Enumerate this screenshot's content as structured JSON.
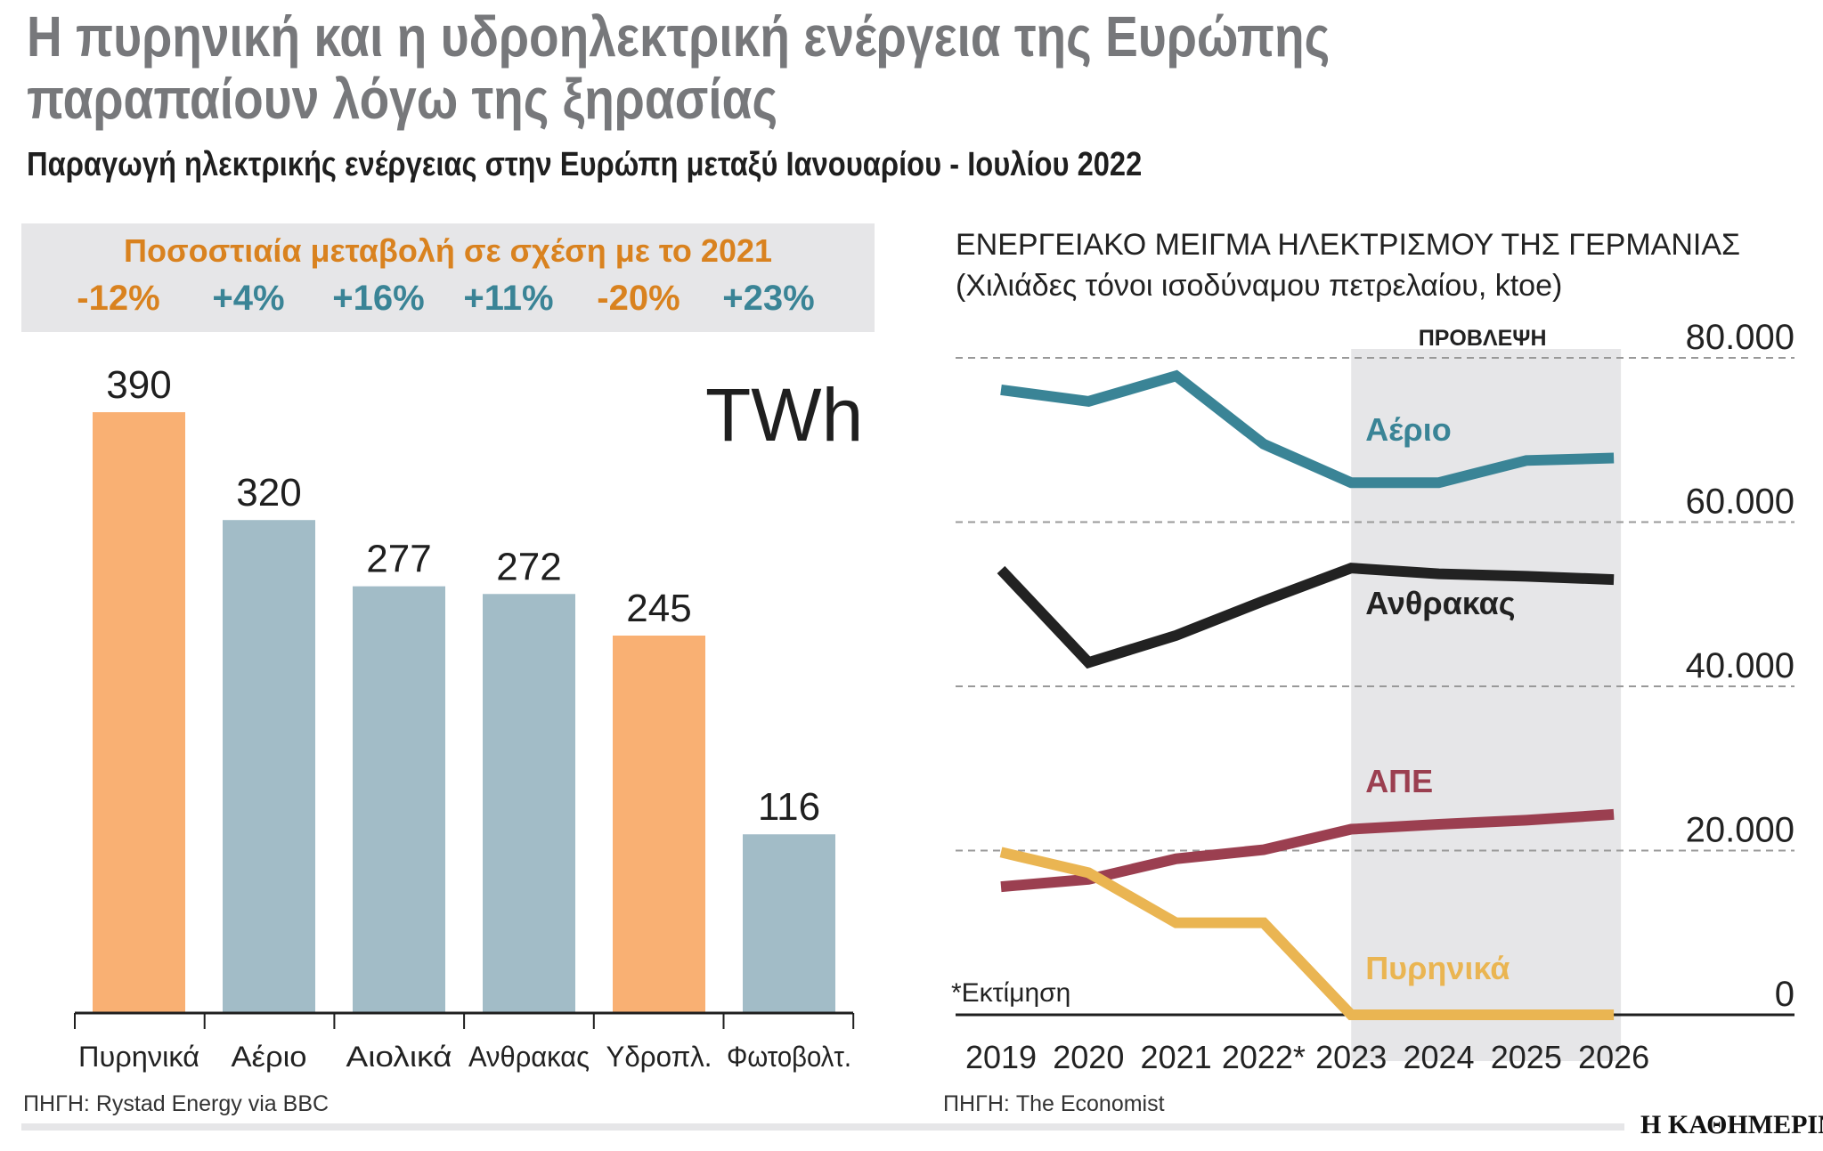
{
  "title": "Η πυρηνική και η υδροηλεκτρική ενέργεια της Ευρώπης παραπαίουν λόγω της ξηρασίας",
  "title_lines": [
    "Η πυρηνική και η υδροηλεκτρική ενέργεια της Ευρώπης",
    "παραπαίουν λόγω της ξηρασίας"
  ],
  "subtitle": "Παραγωγή ηλεκτρικής ενέργειας στην Ευρώπη μεταξύ Ιανουαρίου - Ιουλίου 2022",
  "colors": {
    "decline": "#f9b073",
    "growth": "#a2bcc7",
    "pct_negative": "#d9821f",
    "pct_positive": "#3a8496",
    "gas": "#3a8496",
    "coal": "#222222",
    "renewables": "#9b3f50",
    "nuclear": "#eab552",
    "forecast_shade": "#e6e6e8"
  },
  "chart_data": [
    {
      "type": "bar",
      "unit": "TWh",
      "categories": [
        "Πυρηνικά",
        "Αέριο",
        "Αιολικά",
        "Ανθρακας",
        "Υδροπλ.",
        "Φωτοβολτ."
      ],
      "values": [
        390,
        320,
        277,
        272,
        245,
        116
      ],
      "value_labels": [
        "390",
        "320",
        "277",
        "272",
        "245",
        "116"
      ],
      "change_title": "Ποσοστιαία μεταβολή σε σχέση με το 2021",
      "change_labels": [
        "-12%",
        "+4%",
        "+16%",
        "+11%",
        "-20%",
        "+23%"
      ],
      "change_values": [
        -12,
        4,
        16,
        11,
        -20,
        23
      ],
      "ylim": [
        0,
        390
      ],
      "source": "ΠΗΓΗ: Rystad Energy via BBC"
    },
    {
      "type": "line",
      "title": "ΕΝΕΡΓΕΙΑΚΟ ΜΕΙΓΜΑ ΗΛΕΚΤΡΙΣΜΟΥ ΤΗΣ ΓΕΡΜΑΝΙΑΣ",
      "subtitle": "(Χιλιάδες τόνοι ισοδύναμου πετρελαίου, ktoe)",
      "x": [
        "2019",
        "2020",
        "2021",
        "2022*",
        "2023",
        "2024",
        "2025",
        "2026"
      ],
      "ylim": [
        0,
        80000
      ],
      "yticks": [
        "0",
        "20.000",
        "40.000",
        "60.000",
        "80.000"
      ],
      "ytick_values": [
        0,
        20000,
        40000,
        60000,
        80000
      ],
      "grid": true,
      "forecast_label": "ΠΡΟΒΛΕΨΗ",
      "forecast_range": [
        "2023",
        "2026"
      ],
      "note": "*Εκτίμηση",
      "series": [
        {
          "name": "Αέριο",
          "key": "gas",
          "values": [
            76100,
            74700,
            77800,
            69500,
            64800,
            64800,
            67500,
            67800
          ]
        },
        {
          "name": "Ανθρακας",
          "key": "coal",
          "values": [
            54200,
            42900,
            46200,
            50400,
            54400,
            53700,
            53400,
            53000
          ]
        },
        {
          "name": "ΑΠΕ",
          "key": "renewables",
          "values": [
            15600,
            16500,
            19000,
            20100,
            22600,
            23200,
            23700,
            24400
          ]
        },
        {
          "name": "Πυρηνικά",
          "key": "nuclear",
          "values": [
            19800,
            17300,
            11200,
            11200,
            0,
            0,
            0,
            0
          ]
        }
      ],
      "source": "ΠΗΓΗ: The Economist"
    }
  ],
  "logo": "Η ΚΑΘΗΜΕΡΙΝΗ"
}
